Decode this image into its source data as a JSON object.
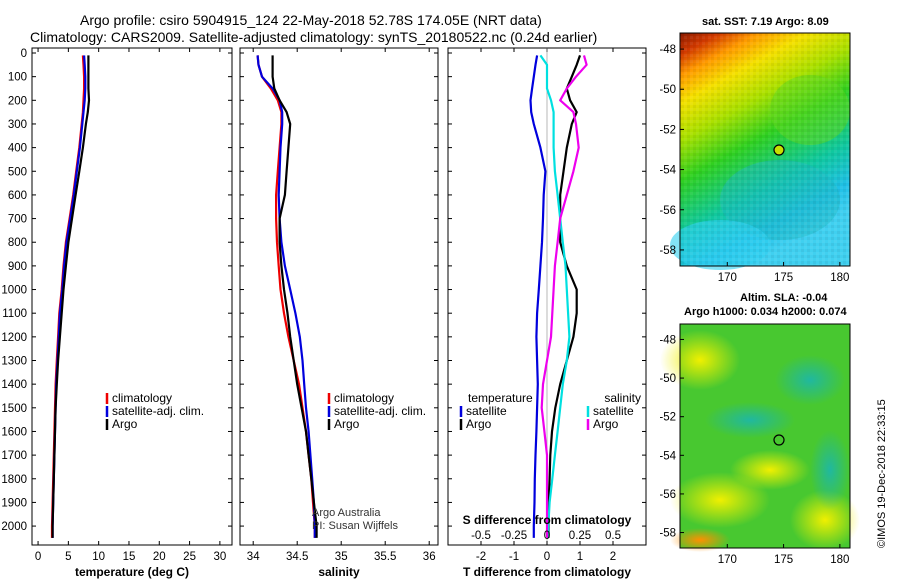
{
  "header": {
    "title_line1": "Argo profile: csiro 5904915_124 22-May-2018 52.78S 174.05E (NRT data)",
    "title_line2": "Climatology: CARS2009. Satellite-adjusted climatology: synTS_20180522.nc (0.24d earlier)"
  },
  "colors": {
    "climatology": "#ee0000",
    "satellite": "#0000dd",
    "argo": "#000000",
    "sat_salinity": "#00e0e0",
    "argo_salinity": "#ee00ee"
  },
  "depth_ticks": [
    "0",
    "100",
    "200",
    "300",
    "400",
    "500",
    "600",
    "700",
    "800",
    "900",
    "1000",
    "1100",
    "1200",
    "1300",
    "1400",
    "1500",
    "1600",
    "1700",
    "1800",
    "1900",
    "2000"
  ],
  "chart_data": [
    {
      "type": "line",
      "name": "temperature",
      "xlabel": "temperature (deg C)",
      "ylabel": "depth",
      "xlim": [
        -1,
        32
      ],
      "ylim": [
        0,
        2080
      ],
      "xticks": [
        0,
        5,
        10,
        15,
        20,
        25,
        30
      ],
      "xtick_labels": [
        "0",
        "5",
        "10",
        "15",
        "20",
        "25",
        "30"
      ],
      "legend": [
        "climatology",
        "satellite-adj. clim.",
        "Argo"
      ],
      "depth": [
        10,
        50,
        100,
        150,
        200,
        250,
        300,
        400,
        500,
        600,
        700,
        800,
        900,
        1000,
        1100,
        1200,
        1300,
        1400,
        1500,
        1600,
        1700,
        1800,
        1900,
        2000,
        2050
      ],
      "series": [
        {
          "name": "climatology",
          "color": "#ee0000",
          "values": [
            7.4,
            7.5,
            7.6,
            7.6,
            7.5,
            7.4,
            7.2,
            6.8,
            6.3,
            5.8,
            5.2,
            4.6,
            4.2,
            3.9,
            3.5,
            3.3,
            3.1,
            2.9,
            2.8,
            2.7,
            2.6,
            2.5,
            2.4,
            2.3,
            2.3
          ]
        },
        {
          "name": "satellite-adj. clim.",
          "color": "#0000dd",
          "values": [
            7.6,
            7.7,
            7.8,
            7.8,
            7.7,
            7.5,
            7.3,
            6.9,
            6.4,
            5.9,
            5.3,
            4.7,
            4.3,
            4.0,
            3.6,
            3.4,
            3.2,
            3.0,
            2.9,
            2.8,
            2.7,
            2.6,
            2.5,
            2.4,
            2.4
          ]
        },
        {
          "name": "Argo",
          "color": "#000000",
          "values": [
            8.3,
            8.3,
            8.3,
            8.3,
            8.4,
            8.2,
            7.9,
            7.4,
            6.8,
            6.2,
            5.6,
            5.0,
            4.6,
            4.2,
            3.9,
            3.6,
            3.3,
            3.1,
            2.9,
            2.8,
            2.7,
            2.6,
            2.5,
            2.4,
            2.4
          ]
        }
      ]
    },
    {
      "type": "line",
      "name": "salinity",
      "xlabel": "salinity",
      "xlim": [
        33.85,
        36.1
      ],
      "ylim": [
        0,
        2080
      ],
      "xticks": [
        34,
        34.5,
        35,
        35.5,
        36
      ],
      "xtick_labels": [
        "34",
        "34.5",
        "35",
        "35.5",
        "36"
      ],
      "legend": [
        "climatology",
        "satellite-adj. clim.",
        "Argo"
      ],
      "credit_line1": "Argo Australia",
      "credit_line2": "PI: Susan Wijffels",
      "depth": [
        10,
        50,
        100,
        150,
        200,
        250,
        300,
        400,
        500,
        600,
        700,
        800,
        900,
        1000,
        1100,
        1200,
        1300,
        1400,
        1500,
        1600,
        1700,
        1800,
        1900,
        2000,
        2050
      ],
      "series": [
        {
          "name": "climatology",
          "color": "#ee0000",
          "values": [
            34.05,
            34.06,
            34.1,
            34.2,
            34.28,
            34.32,
            34.32,
            34.3,
            34.28,
            34.26,
            34.26,
            34.27,
            34.29,
            34.31,
            34.35,
            34.4,
            34.46,
            34.52,
            34.56,
            34.6,
            34.63,
            34.66,
            34.68,
            34.7,
            34.7
          ]
        },
        {
          "name": "satellite-adj. clim.",
          "color": "#0000dd",
          "values": [
            34.05,
            34.06,
            34.1,
            34.22,
            34.3,
            34.33,
            34.33,
            34.31,
            34.3,
            34.29,
            34.3,
            34.32,
            34.36,
            34.42,
            34.48,
            34.53,
            34.56,
            34.58,
            34.6,
            34.63,
            34.65,
            34.67,
            34.69,
            34.7,
            34.7
          ]
        },
        {
          "name": "Argo",
          "color": "#000000",
          "values": [
            34.22,
            34.22,
            34.22,
            34.24,
            34.3,
            34.38,
            34.42,
            34.4,
            34.38,
            34.36,
            34.3,
            34.3,
            34.32,
            34.35,
            34.39,
            34.42,
            34.46,
            34.5,
            34.55,
            34.6,
            34.63,
            34.66,
            34.69,
            34.72,
            34.72
          ]
        }
      ]
    },
    {
      "type": "line",
      "name": "differences",
      "xlabel": "T difference from climatology",
      "xlim": [
        -3,
        3
      ],
      "ylim": [
        0,
        2080
      ],
      "xticks": [
        -2,
        -1,
        0,
        1,
        2
      ],
      "xtick_labels": [
        "-2",
        "-1",
        "0",
        "1",
        "2"
      ],
      "top_axis_label": "S difference from climatology",
      "top_ticks": [
        "-0.5",
        "-0.25",
        "0",
        "0.25",
        "0.5"
      ],
      "legend_temperature_title": "temperature",
      "legend_salinity_title": "salinity",
      "legend_temperature": [
        "satellite",
        "Argo"
      ],
      "legend_salinity": [
        "satellite",
        "Argo"
      ],
      "depth": [
        10,
        50,
        100,
        150,
        200,
        250,
        300,
        400,
        500,
        600,
        700,
        800,
        900,
        1000,
        1100,
        1200,
        1300,
        1400,
        1500,
        1600,
        1700,
        1800,
        1900,
        2000,
        2050
      ],
      "series": [
        {
          "name": "T satellite",
          "color": "#0000dd",
          "values": [
            -0.3,
            -0.35,
            -0.4,
            -0.45,
            -0.5,
            -0.48,
            -0.4,
            -0.2,
            -0.05,
            -0.1,
            -0.12,
            -0.15,
            -0.2,
            -0.25,
            -0.3,
            -0.32,
            -0.3,
            -0.28,
            -0.3,
            -0.32,
            -0.35,
            -0.37,
            -0.38,
            -0.4,
            -0.4
          ]
        },
        {
          "name": "T Argo",
          "color": "#000000",
          "values": [
            1.0,
            0.9,
            0.75,
            0.6,
            0.7,
            0.9,
            0.75,
            0.6,
            0.5,
            0.4,
            0.4,
            0.4,
            0.6,
            0.9,
            0.9,
            0.8,
            0.6,
            0.4,
            0.25,
            0.15,
            0.1,
            0.08,
            0.05,
            0.05,
            0.05
          ]
        },
        {
          "name": "S satellite",
          "color": "#00e0e0",
          "values": [
            -0.05,
            0.0,
            0.0,
            0.0,
            0.03,
            0.05,
            0.05,
            0.05,
            0.06,
            0.08,
            0.1,
            0.12,
            0.14,
            0.15,
            0.16,
            0.17,
            0.15,
            0.12,
            0.1,
            0.08,
            0.06,
            0.04,
            0.02,
            0.01,
            0.01
          ]
        },
        {
          "name": "S Argo",
          "color": "#ee00ee",
          "values": [
            0.28,
            0.3,
            0.22,
            0.15,
            0.1,
            0.2,
            0.22,
            0.24,
            0.2,
            0.15,
            0.1,
            0.08,
            0.06,
            0.05,
            0.04,
            0.03,
            0.0,
            -0.03,
            -0.04,
            -0.02,
            0.0,
            0.0,
            0.0,
            0.0,
            0.0
          ]
        }
      ]
    }
  ],
  "map_sst": {
    "title": "sat. SST: 7.19 Argo: 8.09",
    "lat_ticks": [
      "-48",
      "-50",
      "-52",
      "-54",
      "-56",
      "-58"
    ],
    "lon_ticks": [
      "170",
      "175",
      "180"
    ]
  },
  "map_sla": {
    "title_line1": "Altim. SLA: -0.04",
    "title_line2": "Argo h1000: 0.034 h2000: 0.074",
    "lat_ticks": [
      "-48",
      "-50",
      "-52",
      "-54",
      "-56",
      "-58"
    ],
    "lon_ticks": [
      "170",
      "175",
      "180"
    ]
  },
  "footer": {
    "stamp": "©IMOS 19-Dec-2018 22:33:15"
  }
}
